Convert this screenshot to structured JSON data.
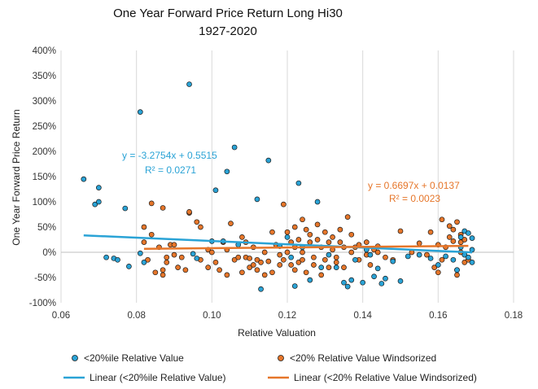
{
  "chart_data": {
    "type": "scatter",
    "title": "One Year Forward Price Return Long Hi30",
    "subtitle": "1927-2020",
    "xlabel": "Relative Valuation",
    "ylabel": "One Year Forward Price Return",
    "xlim": [
      0.06,
      0.18
    ],
    "ylim": [
      -100,
      400
    ],
    "x_ticks": [
      0.06,
      0.08,
      0.1,
      0.12,
      0.14,
      0.16,
      0.18
    ],
    "x_tick_labels": [
      "0.06",
      "0.08",
      "0.10",
      "0.12",
      "0.14",
      "0.16",
      "0.18"
    ],
    "y_ticks": [
      -100,
      -50,
      0,
      50,
      100,
      150,
      200,
      250,
      300,
      350,
      400
    ],
    "y_tick_labels": [
      "-100%",
      "-50%",
      "0%",
      "50%",
      "100%",
      "150%",
      "200%",
      "250%",
      "300%",
      "350%",
      "400%"
    ],
    "grid": "vertical",
    "colors": {
      "blue": "#2aa3d6",
      "orange": "#e6762a",
      "marker_edge": "#1a1a1a",
      "grid": "#d9d9d9"
    },
    "series": [
      {
        "name": "<20%ile Relative Value",
        "color": "#2aa3d6",
        "points": [
          [
            0.066,
            145
          ],
          [
            0.069,
            95
          ],
          [
            0.07,
            128
          ],
          [
            0.07,
            100
          ],
          [
            0.072,
            -10
          ],
          [
            0.074,
            -12
          ],
          [
            0.075,
            -15
          ],
          [
            0.077,
            87
          ],
          [
            0.078,
            -28
          ],
          [
            0.081,
            278
          ],
          [
            0.081,
            -2
          ],
          [
            0.082,
            -20
          ],
          [
            0.094,
            333
          ],
          [
            0.095,
            -3
          ],
          [
            0.096,
            -12
          ],
          [
            0.1,
            22
          ],
          [
            0.101,
            123
          ],
          [
            0.103,
            22
          ],
          [
            0.104,
            160
          ],
          [
            0.106,
            208
          ],
          [
            0.107,
            15
          ],
          [
            0.112,
            105
          ],
          [
            0.113,
            -73
          ],
          [
            0.115,
            182
          ],
          [
            0.118,
            12
          ],
          [
            0.12,
            30
          ],
          [
            0.121,
            -10
          ],
          [
            0.122,
            -67
          ],
          [
            0.123,
            137
          ],
          [
            0.124,
            10
          ],
          [
            0.126,
            -55
          ],
          [
            0.128,
            100
          ],
          [
            0.129,
            -30
          ],
          [
            0.131,
            -5
          ],
          [
            0.133,
            -30
          ],
          [
            0.135,
            -60
          ],
          [
            0.136,
            -68
          ],
          [
            0.137,
            -55
          ],
          [
            0.138,
            -15
          ],
          [
            0.14,
            -60
          ],
          [
            0.141,
            5
          ],
          [
            0.142,
            -5
          ],
          [
            0.143,
            -48
          ],
          [
            0.144,
            -32
          ],
          [
            0.145,
            -62
          ],
          [
            0.146,
            -52
          ],
          [
            0.148,
            -18
          ],
          [
            0.15,
            -57
          ],
          [
            0.152,
            -8
          ],
          [
            0.155,
            -5
          ],
          [
            0.158,
            -12
          ],
          [
            0.16,
            -25
          ],
          [
            0.162,
            -8
          ],
          [
            0.164,
            -15
          ],
          [
            0.165,
            -35
          ],
          [
            0.166,
            10
          ],
          [
            0.166,
            30
          ],
          [
            0.167,
            -5
          ],
          [
            0.167,
            42
          ],
          [
            0.168,
            38
          ],
          [
            0.168,
            -10
          ],
          [
            0.169,
            28
          ],
          [
            0.169,
            -20
          ],
          [
            0.169,
            5
          ]
        ],
        "trendline": {
          "label": "Linear (<20%ile Relative Value)",
          "equation": "y = -3.2754x + 0.5515",
          "r2": "R² = 0.0271",
          "slope": -3.2754,
          "intercept": 0.5515,
          "x_range": [
            0.066,
            0.169
          ]
        }
      },
      {
        "name": "<20% Relative Value Windsorized",
        "color": "#e6762a",
        "points": [
          [
            0.082,
            50
          ],
          [
            0.082,
            20
          ],
          [
            0.083,
            -15
          ],
          [
            0.084,
            97
          ],
          [
            0.084,
            35
          ],
          [
            0.085,
            -40
          ],
          [
            0.086,
            10
          ],
          [
            0.087,
            88
          ],
          [
            0.087,
            -35
          ],
          [
            0.087,
            -45
          ],
          [
            0.088,
            -20
          ],
          [
            0.088,
            -10
          ],
          [
            0.089,
            15
          ],
          [
            0.09,
            15
          ],
          [
            0.09,
            -5
          ],
          [
            0.091,
            -30
          ],
          [
            0.092,
            -10
          ],
          [
            0.093,
            -35
          ],
          [
            0.094,
            78
          ],
          [
            0.094,
            80
          ],
          [
            0.096,
            60
          ],
          [
            0.097,
            50
          ],
          [
            0.097,
            -15
          ],
          [
            0.099,
            -30
          ],
          [
            0.099,
            5
          ],
          [
            0.1,
            0
          ],
          [
            0.101,
            -20
          ],
          [
            0.102,
            -35
          ],
          [
            0.103,
            20
          ],
          [
            0.104,
            -45
          ],
          [
            0.104,
            5
          ],
          [
            0.105,
            57
          ],
          [
            0.106,
            -15
          ],
          [
            0.107,
            -10
          ],
          [
            0.108,
            30
          ],
          [
            0.108,
            -40
          ],
          [
            0.109,
            -10
          ],
          [
            0.109,
            20
          ],
          [
            0.11,
            -12
          ],
          [
            0.11,
            -30
          ],
          [
            0.111,
            -25
          ],
          [
            0.111,
            10
          ],
          [
            0.112,
            -15
          ],
          [
            0.112,
            -35
          ],
          [
            0.113,
            -20
          ],
          [
            0.114,
            -45
          ],
          [
            0.114,
            0
          ],
          [
            0.115,
            -18
          ],
          [
            0.116,
            -40
          ],
          [
            0.116,
            40
          ],
          [
            0.117,
            15
          ],
          [
            0.118,
            -5
          ],
          [
            0.118,
            -25
          ],
          [
            0.119,
            95
          ],
          [
            0.119,
            -15
          ],
          [
            0.12,
            0
          ],
          [
            0.12,
            40
          ],
          [
            0.121,
            20
          ],
          [
            0.121,
            -25
          ],
          [
            0.122,
            50
          ],
          [
            0.122,
            10
          ],
          [
            0.122,
            -35
          ],
          [
            0.123,
            -20
          ],
          [
            0.123,
            25
          ],
          [
            0.124,
            0
          ],
          [
            0.124,
            -15
          ],
          [
            0.124,
            65
          ],
          [
            0.125,
            45
          ],
          [
            0.125,
            -40
          ],
          [
            0.126,
            20
          ],
          [
            0.126,
            35
          ],
          [
            0.127,
            -10
          ],
          [
            0.127,
            -25
          ],
          [
            0.128,
            25
          ],
          [
            0.128,
            55
          ],
          [
            0.129,
            -45
          ],
          [
            0.129,
            10
          ],
          [
            0.13,
            40
          ],
          [
            0.13,
            -15
          ],
          [
            0.131,
            20
          ],
          [
            0.131,
            -30
          ],
          [
            0.132,
            5
          ],
          [
            0.132,
            30
          ],
          [
            0.133,
            -10
          ],
          [
            0.133,
            -20
          ],
          [
            0.134,
            20
          ],
          [
            0.134,
            45
          ],
          [
            0.135,
            10
          ],
          [
            0.135,
            -30
          ],
          [
            0.136,
            70
          ],
          [
            0.137,
            35
          ],
          [
            0.137,
            0
          ],
          [
            0.138,
            10
          ],
          [
            0.139,
            15
          ],
          [
            0.139,
            -15
          ],
          [
            0.141,
            -5
          ],
          [
            0.141,
            20
          ],
          [
            0.142,
            -25
          ],
          [
            0.143,
            5
          ],
          [
            0.144,
            0
          ],
          [
            0.144,
            12
          ],
          [
            0.146,
            -10
          ],
          [
            0.148,
            -15
          ],
          [
            0.15,
            42
          ],
          [
            0.153,
            0
          ],
          [
            0.155,
            18
          ],
          [
            0.157,
            -5
          ],
          [
            0.158,
            40
          ],
          [
            0.159,
            -30
          ],
          [
            0.16,
            -40
          ],
          [
            0.16,
            15
          ],
          [
            0.161,
            65
          ],
          [
            0.161,
            -15
          ],
          [
            0.162,
            10
          ],
          [
            0.163,
            30
          ],
          [
            0.163,
            52
          ],
          [
            0.164,
            45
          ],
          [
            0.164,
            22
          ],
          [
            0.165,
            -35
          ],
          [
            0.165,
            60
          ],
          [
            0.165,
            -45
          ],
          [
            0.166,
            35
          ],
          [
            0.166,
            20
          ],
          [
            0.166,
            0
          ],
          [
            0.167,
            -20
          ],
          [
            0.167,
            25
          ],
          [
            0.168,
            -15
          ]
        ],
        "trendline": {
          "label": "Linear (<20% Relative Value Windsorized)",
          "equation": "y = 0.6697x + 0.0137",
          "r2": "R² = 0.0023",
          "slope": 0.6697,
          "intercept": 0.0137,
          "x_range": [
            0.082,
            0.168
          ]
        }
      }
    ]
  }
}
